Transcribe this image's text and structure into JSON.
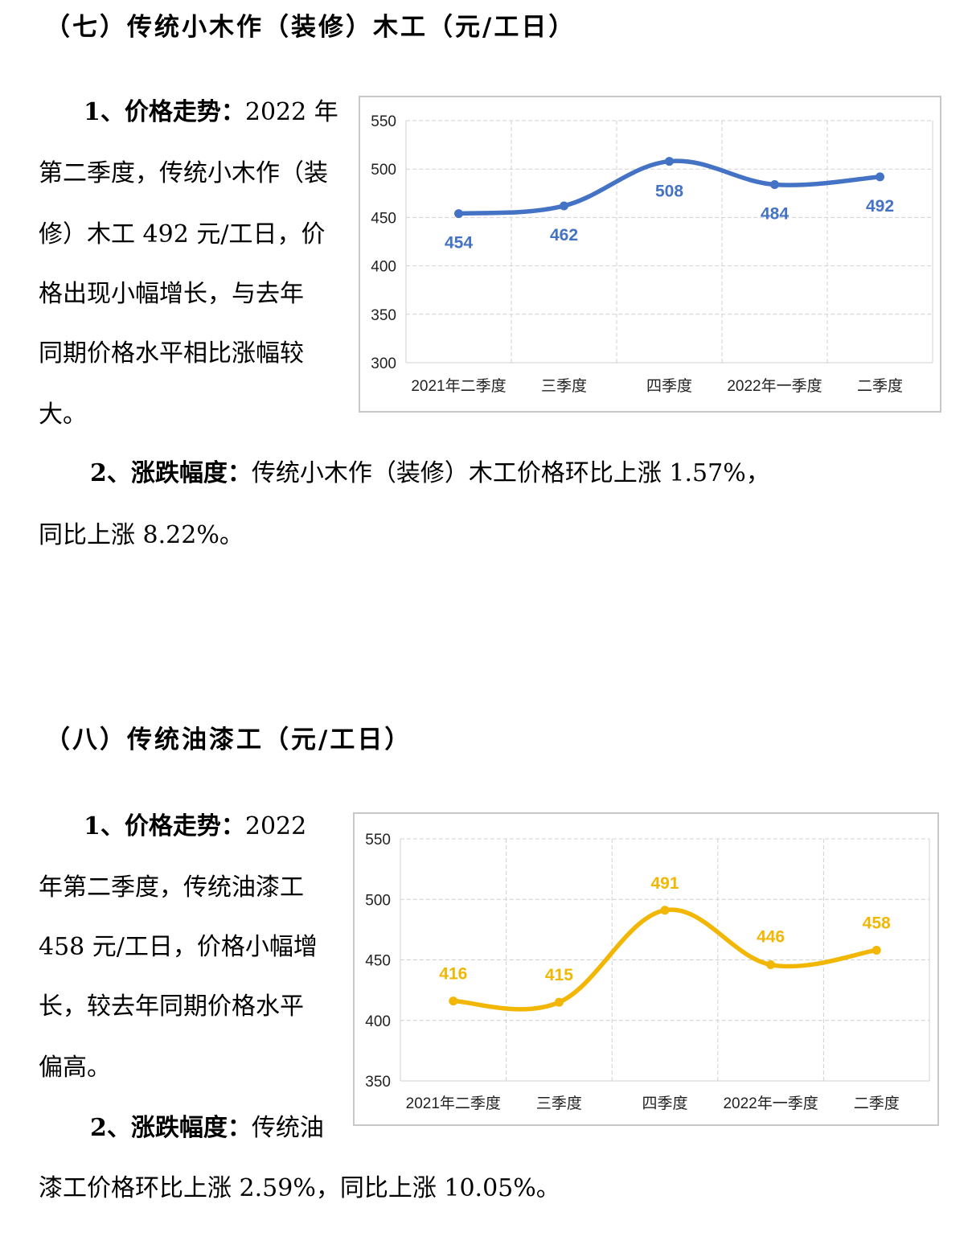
{
  "section7": {
    "heading": "（七）传统小木作（装修）木工（元/工日）",
    "trend": {
      "label": "1、价格走势：",
      "lines": [
        "2022 年",
        "第二季度，传统小木作（装",
        "修）木工 492 元/工日，价",
        "格出现小幅增长，与去年",
        "同期价格水平相比涨幅较",
        "大。"
      ]
    },
    "change": {
      "label": "2、涨跌幅度：",
      "line1": "传统小木作（装修）木工价格环比上涨 1.57%，",
      "line2": "同比上涨 8.22%。"
    },
    "chart_data": {
      "type": "line",
      "categories": [
        "2021年二季度",
        "三季度",
        "四季度",
        "2022年一季度",
        "二季度"
      ],
      "values": [
        454,
        462,
        508,
        484,
        492
      ],
      "ylim": [
        300,
        550
      ],
      "yticks": [
        550,
        500,
        450,
        400,
        350,
        300
      ],
      "grid": true,
      "color": "#4472C4"
    }
  },
  "section8": {
    "heading": "（八）传统油漆工（元/工日）",
    "trend": {
      "label": "1、价格走势：",
      "lines": [
        "2022",
        "年第二季度，传统油漆工",
        "458 元/工日，价格小幅增",
        "长，较去年同期价格水平",
        "偏高。"
      ]
    },
    "change": {
      "label": "2、涨跌幅度：",
      "line1": "传统油",
      "line2": "漆工价格环比上涨 2.59%，同比上涨 10.05%。"
    },
    "chart_data": {
      "type": "line",
      "categories": [
        "2021年二季度",
        "三季度",
        "四季度",
        "2022年一季度",
        "二季度"
      ],
      "values": [
        416,
        415,
        491,
        446,
        458
      ],
      "ylim": [
        350,
        550
      ],
      "yticks": [
        550,
        500,
        450,
        400,
        350
      ],
      "grid": true,
      "color": "#F2B705"
    }
  }
}
